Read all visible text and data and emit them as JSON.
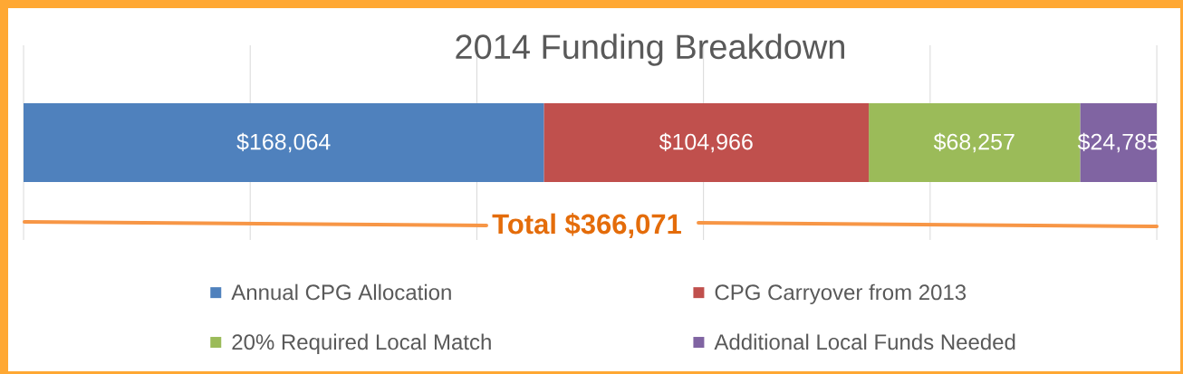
{
  "chart_data": {
    "type": "bar",
    "orientation": "horizontal",
    "stacked": true,
    "title": "2014 Funding Breakdown",
    "categories": [
      null
    ],
    "series": [
      {
        "name": "Annual CPG Allocation",
        "color": "#4f81bd",
        "values": [
          168064
        ],
        "value_labels": [
          "$168,064"
        ]
      },
      {
        "name": "CPG Carryover from 2013",
        "color": "#c0504d",
        "values": [
          104966
        ],
        "value_labels": [
          "$104,966"
        ]
      },
      {
        "name": "20% Required Local Match",
        "color": "#9bbb59",
        "values": [
          68257
        ],
        "value_labels": [
          "$68,257"
        ]
      },
      {
        "name": "Additional Local Funds Needed",
        "color": "#8064a2",
        "values": [
          24785
        ],
        "value_labels": [
          "$24,785"
        ]
      }
    ],
    "xlim": [
      0,
      366071
    ],
    "xticks": [
      {
        "value": 0,
        "label": null
      },
      {
        "value": 73214,
        "label": null
      },
      {
        "value": 146428,
        "label": null
      },
      {
        "value": 219643,
        "label": null
      },
      {
        "value": 292857,
        "label": null
      },
      {
        "value": 366071,
        "label": null
      }
    ],
    "grid": "x",
    "legend": "bottom",
    "annotations": [
      "Total $366,071"
    ]
  }
}
